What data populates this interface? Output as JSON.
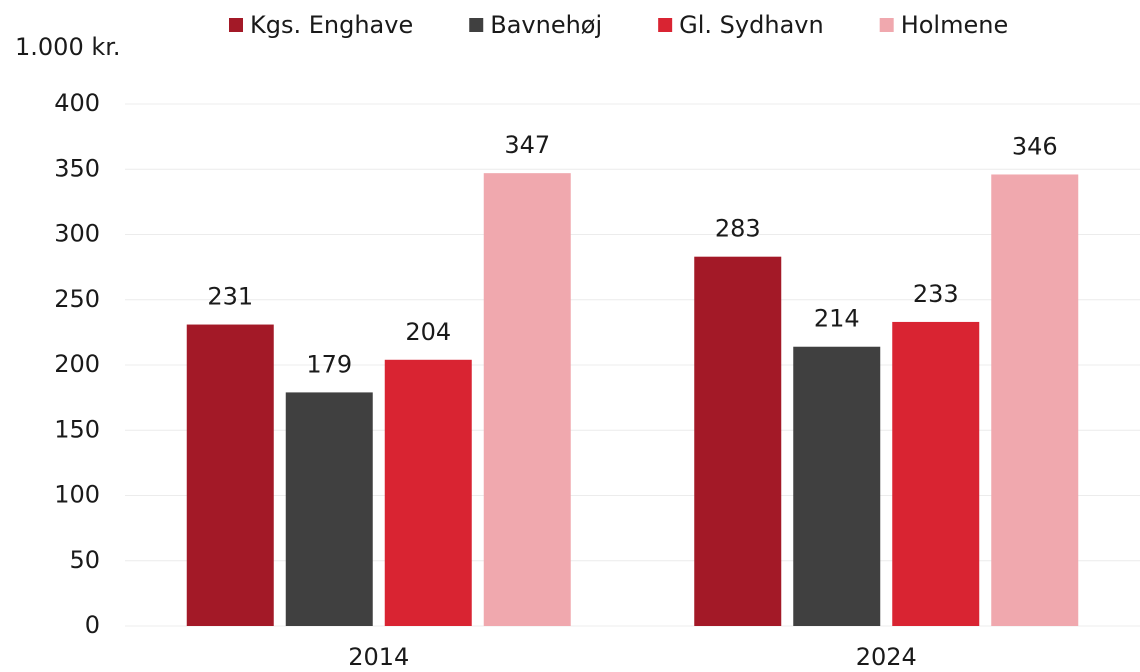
{
  "chart_data": {
    "type": "bar",
    "unit_label": "1.000 kr.",
    "categories": [
      "2014",
      "2024"
    ],
    "series": [
      {
        "name": "Kgs. Enghave",
        "color": "#a31927",
        "values": [
          231,
          283
        ]
      },
      {
        "name": "Bavnehøj",
        "color": "#404040",
        "values": [
          179,
          214
        ]
      },
      {
        "name": "Gl. Sydhavn",
        "color": "#d92432",
        "values": [
          204,
          233
        ]
      },
      {
        "name": "Holmene",
        "color": "#f0a8ae",
        "values": [
          347,
          346
        ]
      }
    ],
    "ylim": [
      0,
      400
    ],
    "yticks": [
      0,
      50,
      100,
      150,
      200,
      250,
      300,
      350,
      400
    ],
    "grid": true,
    "legend": "top",
    "data_labels": true
  }
}
